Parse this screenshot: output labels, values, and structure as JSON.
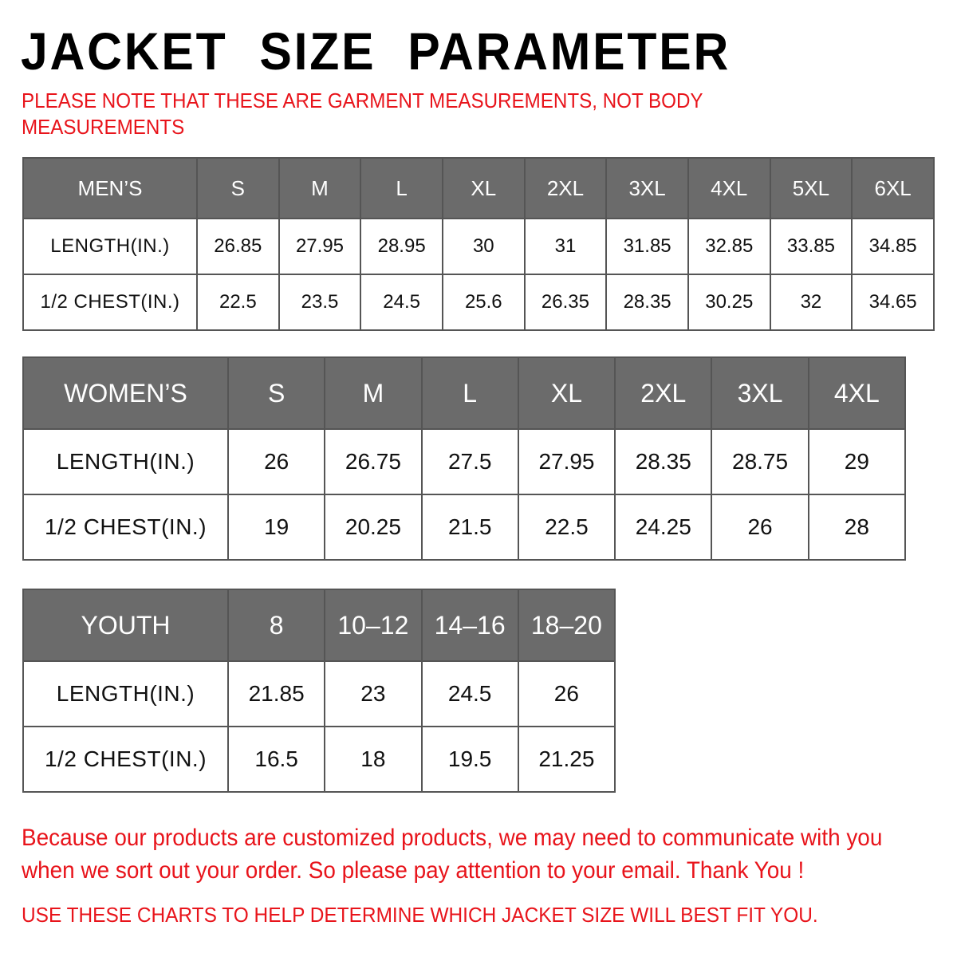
{
  "title": "JACKET SIZE PARAMETER",
  "note": "PLEASE NOTE THAT THESE ARE GARMENT MEASUREMENTS, NOT BODY MEASUREMENTS",
  "colors": {
    "header_bg": "#6b6b6b",
    "accent_red": "#e8141b"
  },
  "tables": {
    "men": {
      "label": "MEN’S",
      "sizes": [
        "S",
        "M",
        "L",
        "XL",
        "2XL",
        "3XL",
        "4XL",
        "5XL",
        "6XL"
      ],
      "rows": [
        {
          "label": "LENGTH(IN.)",
          "values": [
            "26.85",
            "27.95",
            "28.95",
            "30",
            "31",
            "31.85",
            "32.85",
            "33.85",
            "34.85"
          ]
        },
        {
          "label": "1/2 CHEST(IN.)",
          "values": [
            "22.5",
            "23.5",
            "24.5",
            "25.6",
            "26.35",
            "28.35",
            "30.25",
            "32",
            "34.65"
          ]
        }
      ]
    },
    "women": {
      "label": "WOMEN’S",
      "sizes": [
        "S",
        "M",
        "L",
        "XL",
        "2XL",
        "3XL",
        "4XL"
      ],
      "rows": [
        {
          "label": "LENGTH(IN.)",
          "values": [
            "26",
            "26.75",
            "27.5",
            "27.95",
            "28.35",
            "28.75",
            "29"
          ]
        },
        {
          "label": "1/2 CHEST(IN.)",
          "values": [
            "19",
            "20.25",
            "21.5",
            "22.5",
            "24.25",
            "26",
            "28"
          ]
        }
      ]
    },
    "youth": {
      "label": "YOUTH",
      "sizes": [
        "8",
        "10–12",
        "14–16",
        "18–20"
      ],
      "rows": [
        {
          "label": "LENGTH(IN.)",
          "values": [
            "21.85",
            "23",
            "24.5",
            "26"
          ]
        },
        {
          "label": "1/2 CHEST(IN.)",
          "values": [
            "16.5",
            "18",
            "19.5",
            "21.25"
          ]
        }
      ]
    }
  },
  "footer": {
    "line1": "Because our products are customized products, we may need to communicate with you",
    "line2": "when we sort out your order. So please pay attention to your email. Thank You !",
    "line3": "USE THESE CHARTS TO HELP DETERMINE WHICH JACKET SIZE WILL BEST FIT YOU."
  }
}
